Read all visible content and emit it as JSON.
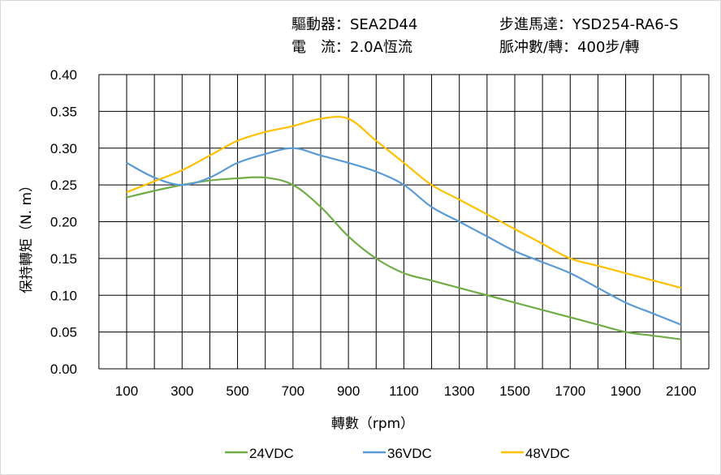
{
  "header": {
    "driver": "驅動器：SEA2D44",
    "motor": "步進馬達：YSD254-RA6-S",
    "current": "電　流：2.0A恆流",
    "pulses": "脈冲數/轉：400步/轉"
  },
  "chart_data": {
    "type": "line",
    "title": "",
    "xlabel": "轉數（rpm）",
    "ylabel": "保持轉矩（N. m）",
    "xlim": [
      0,
      2200
    ],
    "ylim": [
      0,
      0.4
    ],
    "grid": true,
    "legend_placement": "bottom",
    "x_ticks": [
      "100",
      "300",
      "500",
      "700",
      "900",
      "1100",
      "1300",
      "1500",
      "1700",
      "1900",
      "2100"
    ],
    "y_ticks": [
      "0.00",
      "0.05",
      "0.10",
      "0.15",
      "0.20",
      "0.25",
      "0.30",
      "0.35",
      "0.40"
    ],
    "x": [
      100,
      200,
      300,
      400,
      500,
      600,
      700,
      800,
      900,
      1000,
      1100,
      1200,
      1300,
      1400,
      1500,
      1600,
      1700,
      1800,
      1900,
      2000,
      2100
    ],
    "series": [
      {
        "name": "24VDC",
        "color": "#70ad47",
        "values": [
          0.233,
          0.242,
          0.25,
          0.256,
          0.259,
          0.26,
          0.25,
          0.22,
          0.18,
          0.15,
          0.13,
          0.12,
          0.11,
          0.1,
          0.09,
          0.08,
          0.07,
          0.06,
          0.05,
          0.045,
          0.04
        ]
      },
      {
        "name": "36VDC",
        "color": "#5b9bd5",
        "values": [
          0.28,
          0.26,
          0.25,
          0.26,
          0.28,
          0.292,
          0.3,
          0.29,
          0.28,
          0.268,
          0.25,
          0.22,
          0.2,
          0.18,
          0.16,
          0.145,
          0.13,
          0.11,
          0.09,
          0.075,
          0.06
        ]
      },
      {
        "name": "48VDC",
        "color": "#ffc000",
        "values": [
          0.24,
          0.255,
          0.27,
          0.29,
          0.31,
          0.322,
          0.33,
          0.34,
          0.34,
          0.31,
          0.28,
          0.25,
          0.23,
          0.21,
          0.19,
          0.17,
          0.15,
          0.14,
          0.13,
          0.12,
          0.11
        ]
      }
    ]
  }
}
